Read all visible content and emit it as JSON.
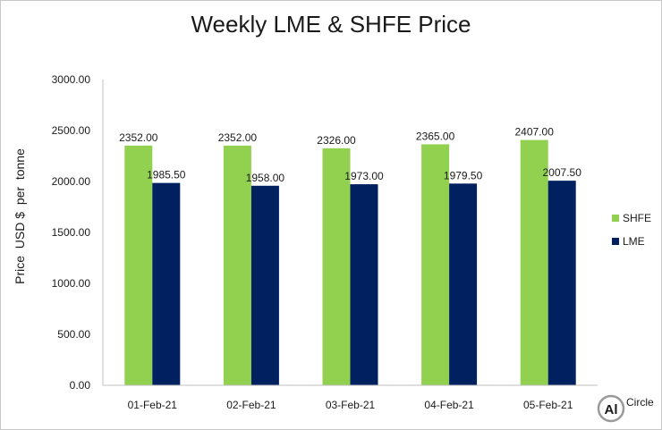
{
  "chart_data": {
    "type": "bar",
    "title": "Weekly LME & SHFE Price",
    "ylabel": "Price  USD $  per  tonne",
    "xlabel": "",
    "categories": [
      "01-Feb-21",
      "02-Feb-21",
      "03-Feb-21",
      "04-Feb-21",
      "05-Feb-21"
    ],
    "series": [
      {
        "name": "SHFE",
        "color": "#92d050",
        "values": [
          2352.0,
          2352.0,
          2326.0,
          2365.0,
          2407.0
        ],
        "labels": [
          "2352.00",
          "2352.00",
          "2326.00",
          "2365.00",
          "2407.00"
        ]
      },
      {
        "name": "LME",
        "color": "#002060",
        "values": [
          1985.5,
          1958.0,
          1973.0,
          1979.5,
          2007.5
        ],
        "labels": [
          "1985.50",
          "1958.00",
          "1973.00",
          "1979.50",
          "2007.50"
        ]
      }
    ],
    "ylim": [
      0,
      3000
    ],
    "yticks": [
      "0.00",
      "500.00",
      "1000.00",
      "1500.00",
      "2000.00",
      "2500.00",
      "3000.00"
    ],
    "grid": false,
    "legend": "right"
  },
  "watermark": {
    "text": "Circle",
    "mark": "Al"
  }
}
